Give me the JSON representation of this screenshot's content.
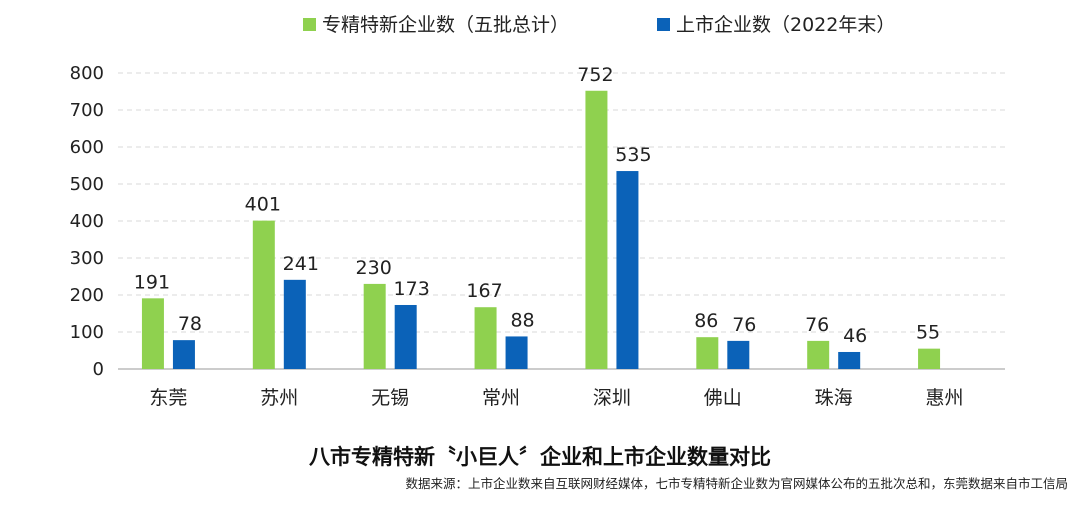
{
  "colors": {
    "series_1": "#8fd14f",
    "series_2": "#0b62b8",
    "grid": "#d9d9d9",
    "axis": "#999999"
  },
  "chart_data": {
    "type": "bar",
    "categories": [
      "东莞",
      "苏州",
      "无锡",
      "常州",
      "深圳",
      "佛山",
      "珠海",
      "惠州"
    ],
    "series": [
      {
        "name": "专精特新企业数（五批总计）",
        "values": [
          191,
          401,
          230,
          167,
          752,
          86,
          76,
          55
        ]
      },
      {
        "name": "上市企业数（2022年末）",
        "values": [
          78,
          241,
          173,
          88,
          535,
          76,
          46,
          null
        ]
      }
    ],
    "ylim": [
      0,
      800
    ],
    "yticks": [
      0,
      100,
      200,
      300,
      400,
      500,
      600,
      700,
      800
    ],
    "grid": true,
    "legend_position": "top-center",
    "data_labels": true,
    "title": "八市专精特新〝小巨人〞企业和上市企业数量对比",
    "source": "数据来源：上市企业数来自互联网财经媒体，七市专精特新企业数为官网媒体公布的五批次总和，东莞数据来自市工信局"
  }
}
